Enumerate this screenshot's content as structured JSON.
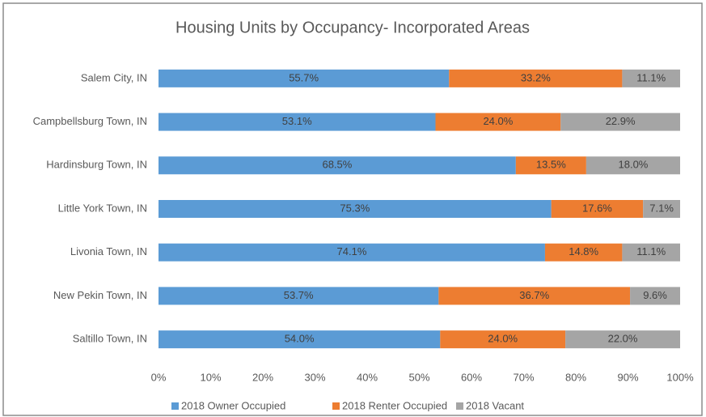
{
  "chart_data": {
    "type": "stacked_bar_horizontal",
    "title": "Housing Units by Occupancy- Incorporated Areas",
    "categories": [
      "Salem City, IN",
      "Campbellsburg Town, IN",
      "Hardinsburg Town, IN",
      "Little York Town, IN",
      "Livonia Town, IN",
      "New Pekin Town, IN",
      "Saltillo Town, IN"
    ],
    "series": [
      {
        "name": "2018 Owner Occupied",
        "color": "#5b9bd5",
        "values": [
          55.7,
          53.1,
          68.5,
          75.3,
          74.1,
          53.7,
          54.0
        ],
        "value_labels": [
          "55.7%",
          "53.1%",
          "68.5%",
          "75.3%",
          "74.1%",
          "53.7%",
          "54.0%"
        ]
      },
      {
        "name": "2018 Renter Occupied",
        "color": "#ed7d31",
        "values": [
          33.2,
          24.0,
          13.5,
          17.6,
          14.8,
          36.7,
          24.0
        ],
        "value_labels": [
          "33.2%",
          "24.0%",
          "13.5%",
          "17.6%",
          "14.8%",
          "36.7%",
          "24.0%"
        ]
      },
      {
        "name": "2018 Vacant",
        "color": "#a5a5a5",
        "values": [
          11.1,
          22.9,
          18.0,
          7.1,
          11.1,
          9.6,
          22.0
        ],
        "value_labels": [
          "11.1%",
          "22.9%",
          "18.0%",
          "7.1%",
          "11.1%",
          "9.6%",
          "22.0%"
        ]
      }
    ],
    "xlim": [
      0,
      100
    ],
    "xticks": [
      {
        "value": 0,
        "label": "0%"
      },
      {
        "value": 10,
        "label": "10%"
      },
      {
        "value": 20,
        "label": "20%"
      },
      {
        "value": 30,
        "label": "30%"
      },
      {
        "value": 40,
        "label": "40%"
      },
      {
        "value": 50,
        "label": "50%"
      },
      {
        "value": 60,
        "label": "60%"
      },
      {
        "value": 70,
        "label": "70%"
      },
      {
        "value": 80,
        "label": "80%"
      },
      {
        "value": 90,
        "label": "90%"
      },
      {
        "value": 100,
        "label": "100%"
      }
    ],
    "grid": false,
    "legend": "bottom"
  }
}
